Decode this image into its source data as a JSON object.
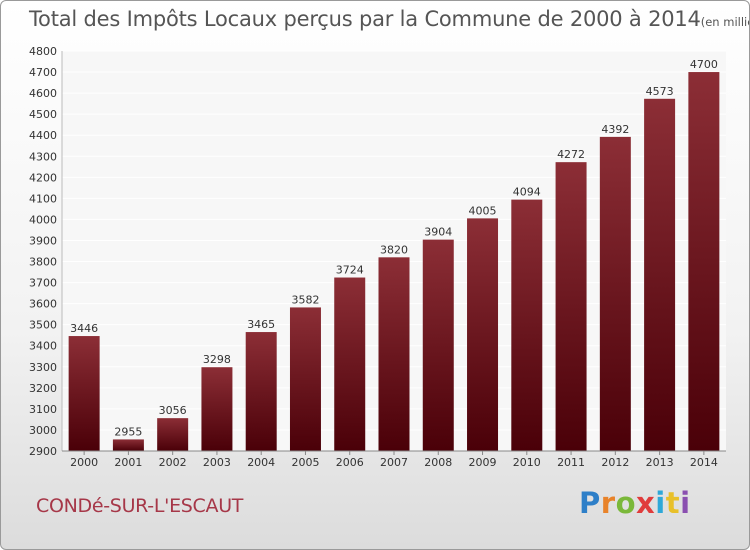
{
  "header": {
    "title": "Total des Impôts Locaux perçus par la Commune de 2000 à 2014",
    "unit": "(en milliers d'€)"
  },
  "footer": {
    "commune": "CONDé-SUR-L'ESCAUT",
    "brand": {
      "letters": [
        "P",
        "r",
        "o",
        "x",
        "i",
        "t",
        "i"
      ],
      "colors": [
        "#2e7fc8",
        "#e8832a",
        "#7ab83a",
        "#e03c3c",
        "#2ea8d8",
        "#e8c02a",
        "#8a4fb0"
      ]
    }
  },
  "colors": {
    "bar_top": "#8c2e36",
    "bar_bottom": "#4a0008",
    "label": "#333333",
    "grid": "#ffffff"
  },
  "chart_data": {
    "type": "bar",
    "title": "Total des Impôts Locaux perçus par la Commune de 2000 à 2014",
    "xlabel": "",
    "ylabel": "",
    "categories": [
      "2000",
      "2001",
      "2002",
      "2003",
      "2004",
      "2005",
      "2006",
      "2007",
      "2008",
      "2009",
      "2010",
      "2011",
      "2012",
      "2013",
      "2014"
    ],
    "values": [
      3446,
      2955,
      3056,
      3298,
      3465,
      3582,
      3724,
      3820,
      3904,
      4005,
      4094,
      4272,
      4392,
      4573,
      4700
    ],
    "ylim": [
      2900,
      4800
    ],
    "yticks": [
      2900,
      3000,
      3100,
      3200,
      3300,
      3400,
      3500,
      3600,
      3700,
      3800,
      3900,
      4000,
      4100,
      4200,
      4300,
      4400,
      4500,
      4600,
      4700,
      4800
    ],
    "grid": true,
    "legend": "none"
  }
}
